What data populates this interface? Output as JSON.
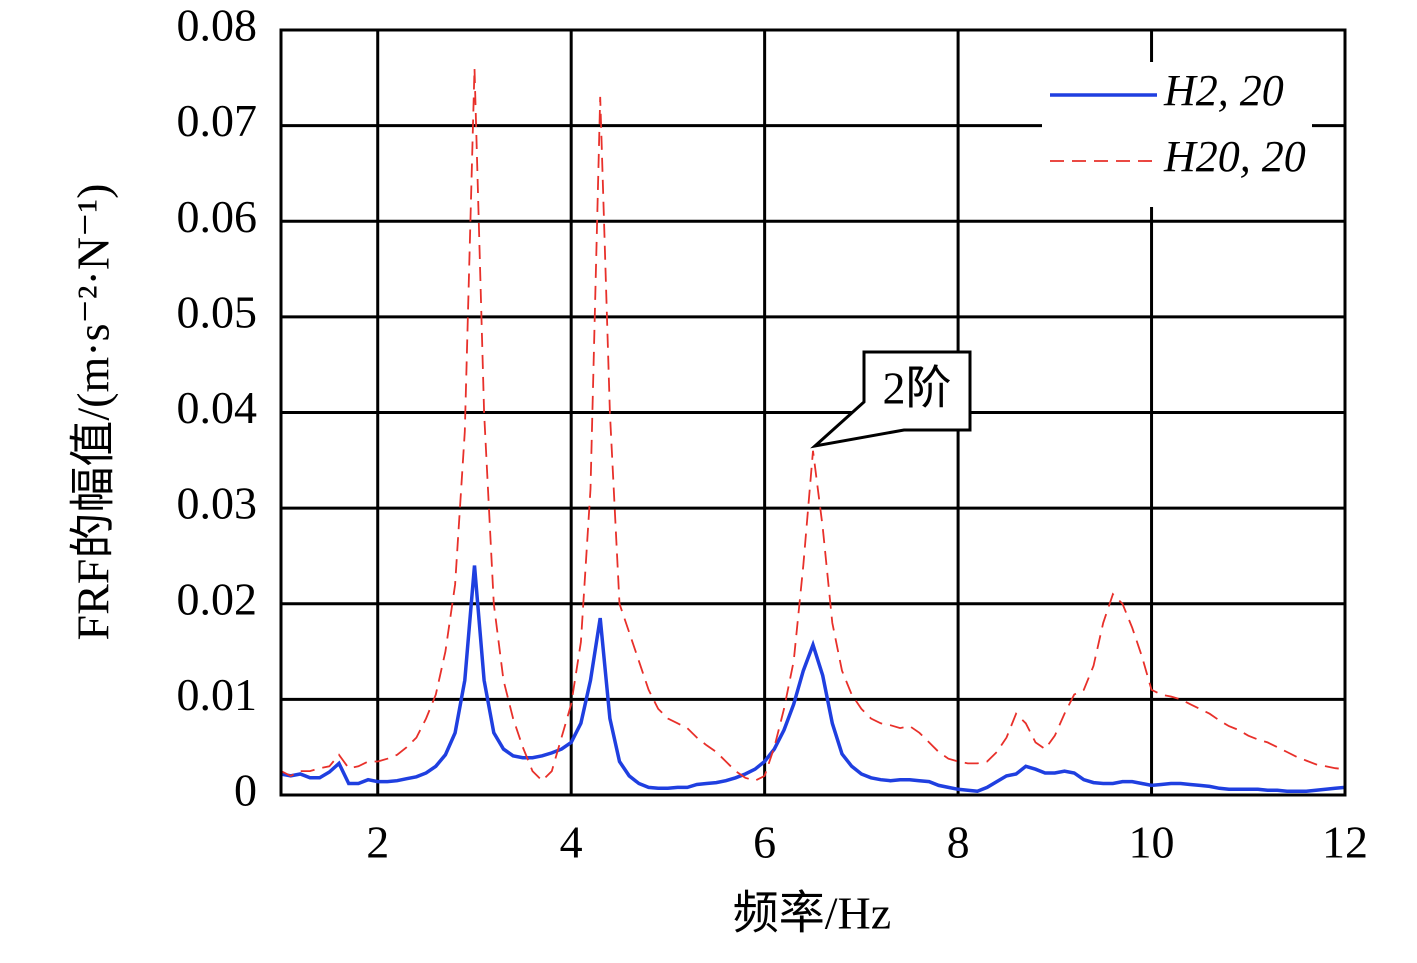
{
  "chart_data": {
    "type": "line",
    "xlabel": "频率/Hz",
    "ylabel": "FRF的幅值/(m·s⁻²·N⁻¹)",
    "xlim": [
      1,
      12
    ],
    "xticks": [
      2,
      4,
      6,
      8,
      10,
      12
    ],
    "ylim": [
      0,
      0.08
    ],
    "yticks": [
      0,
      0.01,
      0.02,
      0.03,
      0.04,
      0.05,
      0.06,
      0.07,
      0.08
    ],
    "grid": true,
    "legend": "upper right",
    "annotations": [
      {
        "text": "2阶"
      }
    ],
    "x": [
      1.0,
      1.1,
      1.2,
      1.3,
      1.4,
      1.5,
      1.6,
      1.7,
      1.8,
      1.9,
      2.0,
      2.1,
      2.2,
      2.3,
      2.4,
      2.5,
      2.6,
      2.7,
      2.8,
      2.9,
      3.0,
      3.1,
      3.2,
      3.3,
      3.4,
      3.5,
      3.6,
      3.7,
      3.8,
      3.9,
      4.0,
      4.1,
      4.2,
      4.3,
      4.4,
      4.5,
      4.6,
      4.7,
      4.8,
      4.9,
      5.0,
      5.1,
      5.2,
      5.3,
      5.4,
      5.5,
      5.6,
      5.7,
      5.8,
      5.9,
      6.0,
      6.1,
      6.2,
      6.3,
      6.4,
      6.5,
      6.6,
      6.7,
      6.8,
      6.9,
      7.0,
      7.1,
      7.2,
      7.3,
      7.4,
      7.5,
      7.6,
      7.7,
      7.8,
      7.9,
      8.0,
      8.1,
      8.2,
      8.3,
      8.4,
      8.5,
      8.6,
      8.7,
      8.8,
      8.9,
      9.0,
      9.1,
      9.2,
      9.3,
      9.4,
      9.5,
      9.6,
      9.7,
      9.8,
      9.9,
      10.0,
      10.1,
      10.2,
      10.3,
      10.4,
      10.5,
      10.6,
      10.7,
      10.8,
      10.9,
      11.0,
      11.1,
      11.2,
      11.3,
      11.4,
      11.5,
      11.6,
      11.7,
      11.8,
      11.9,
      12.0
    ],
    "series": [
      {
        "name": "H2, 20",
        "color": "#1f3fe0",
        "linestyle": "solid",
        "values": [
          0.0022,
          0.002,
          0.0022,
          0.0018,
          0.0018,
          0.0024,
          0.0033,
          0.0012,
          0.0012,
          0.0016,
          0.0014,
          0.0014,
          0.0015,
          0.0017,
          0.0019,
          0.0023,
          0.003,
          0.0042,
          0.0065,
          0.012,
          0.024,
          0.012,
          0.0065,
          0.0048,
          0.0041,
          0.0039,
          0.0039,
          0.0041,
          0.0044,
          0.0048,
          0.0055,
          0.0075,
          0.012,
          0.0185,
          0.008,
          0.0035,
          0.002,
          0.0012,
          0.0008,
          0.0007,
          0.0007,
          0.0008,
          0.0008,
          0.0011,
          0.0012,
          0.0013,
          0.0015,
          0.0018,
          0.0022,
          0.0027,
          0.0035,
          0.0048,
          0.0068,
          0.0095,
          0.013,
          0.0157,
          0.0125,
          0.0075,
          0.0043,
          0.003,
          0.0022,
          0.0018,
          0.0016,
          0.0015,
          0.0016,
          0.0016,
          0.0015,
          0.0014,
          0.001,
          0.0008,
          0.0006,
          0.0005,
          0.0004,
          0.0008,
          0.0014,
          0.002,
          0.0022,
          0.003,
          0.0027,
          0.0023,
          0.0023,
          0.0025,
          0.0023,
          0.0016,
          0.0013,
          0.0012,
          0.0012,
          0.0014,
          0.0014,
          0.0012,
          0.001,
          0.0011,
          0.0012,
          0.0012,
          0.0011,
          0.001,
          0.0009,
          0.0007,
          0.0006,
          0.0006,
          0.0006,
          0.0006,
          0.0005,
          0.0005,
          0.0004,
          0.0004,
          0.0004,
          0.0005,
          0.0006,
          0.0007,
          0.0008
        ]
      },
      {
        "name": "H20, 20",
        "color": "#e8302a",
        "linestyle": "dashed",
        "values": [
          0.0025,
          0.002,
          0.0025,
          0.0025,
          0.0028,
          0.003,
          0.0042,
          0.0028,
          0.003,
          0.0035,
          0.0035,
          0.0038,
          0.0042,
          0.005,
          0.006,
          0.008,
          0.0105,
          0.015,
          0.022,
          0.038,
          0.076,
          0.04,
          0.02,
          0.012,
          0.008,
          0.005,
          0.0025,
          0.0015,
          0.0025,
          0.006,
          0.0095,
          0.016,
          0.032,
          0.073,
          0.04,
          0.02,
          0.017,
          0.014,
          0.011,
          0.009,
          0.008,
          0.0075,
          0.007,
          0.006,
          0.0052,
          0.0045,
          0.0035,
          0.0025,
          0.0018,
          0.0015,
          0.002,
          0.005,
          0.009,
          0.014,
          0.024,
          0.036,
          0.028,
          0.018,
          0.013,
          0.0105,
          0.009,
          0.008,
          0.0075,
          0.0073,
          0.007,
          0.0072,
          0.0065,
          0.0055,
          0.0045,
          0.0038,
          0.0035,
          0.0033,
          0.0033,
          0.0035,
          0.0045,
          0.006,
          0.0085,
          0.0075,
          0.0055,
          0.0048,
          0.0062,
          0.0085,
          0.0105,
          0.011,
          0.0135,
          0.018,
          0.021,
          0.02,
          0.0175,
          0.0145,
          0.011,
          0.0105,
          0.0103,
          0.01,
          0.0095,
          0.009,
          0.0085,
          0.0078,
          0.0072,
          0.0068,
          0.0062,
          0.0058,
          0.0055,
          0.005,
          0.0045,
          0.004,
          0.0036,
          0.0032,
          0.003,
          0.0028,
          0.0027
        ]
      }
    ]
  }
}
